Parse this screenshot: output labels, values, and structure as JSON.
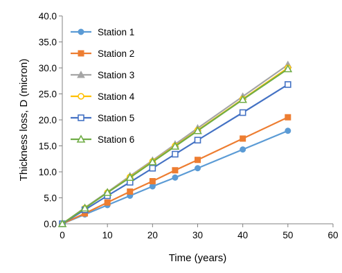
{
  "chart_data": {
    "type": "line",
    "xlabel": "Time (years)",
    "ylabel": "Thickness loss, D (micron)",
    "xlim": [
      0,
      60
    ],
    "ylim": [
      0,
      40
    ],
    "x_ticks": [
      "0",
      "10",
      "20",
      "30",
      "40",
      "50",
      "60"
    ],
    "y_ticks": [
      "0.0",
      "5.0",
      "10.0",
      "15.0",
      "20.0",
      "25.0",
      "30.0",
      "35.0",
      "40.0"
    ],
    "grid": false,
    "legend_position": "top-left",
    "x": [
      0,
      5,
      10,
      15,
      20,
      25,
      30,
      40,
      50
    ],
    "series": [
      {
        "name": "Station 1",
        "color": "#5B9BD5",
        "marker": "circle-filled",
        "values": [
          0,
          1.8,
          3.6,
          5.4,
          7.2,
          8.9,
          10.7,
          14.3,
          17.9
        ]
      },
      {
        "name": "Station 2",
        "color": "#ED7D31",
        "marker": "square-filled",
        "values": [
          0,
          2.0,
          4.1,
          6.2,
          8.2,
          10.3,
          12.3,
          16.4,
          20.5
        ]
      },
      {
        "name": "Station 3",
        "color": "#A5A5A5",
        "marker": "triangle-filled",
        "values": [
          0,
          3.1,
          6.1,
          9.2,
          12.2,
          15.3,
          18.4,
          24.5,
          30.6
        ]
      },
      {
        "name": "Station 4",
        "color": "#FFC000",
        "marker": "circle-open",
        "values": [
          0,
          3.0,
          6.0,
          9.0,
          12.0,
          15.0,
          18.0,
          24.0,
          30.0
        ]
      },
      {
        "name": "Station 5",
        "color": "#4472C4",
        "marker": "square-open",
        "values": [
          0,
          2.7,
          5.4,
          8.0,
          10.7,
          13.4,
          16.1,
          21.4,
          26.8
        ]
      },
      {
        "name": "Station 6",
        "color": "#70AD47",
        "marker": "triangle-open",
        "values": [
          0,
          3.0,
          6.0,
          8.9,
          11.9,
          14.9,
          17.9,
          23.9,
          29.8
        ]
      }
    ]
  }
}
